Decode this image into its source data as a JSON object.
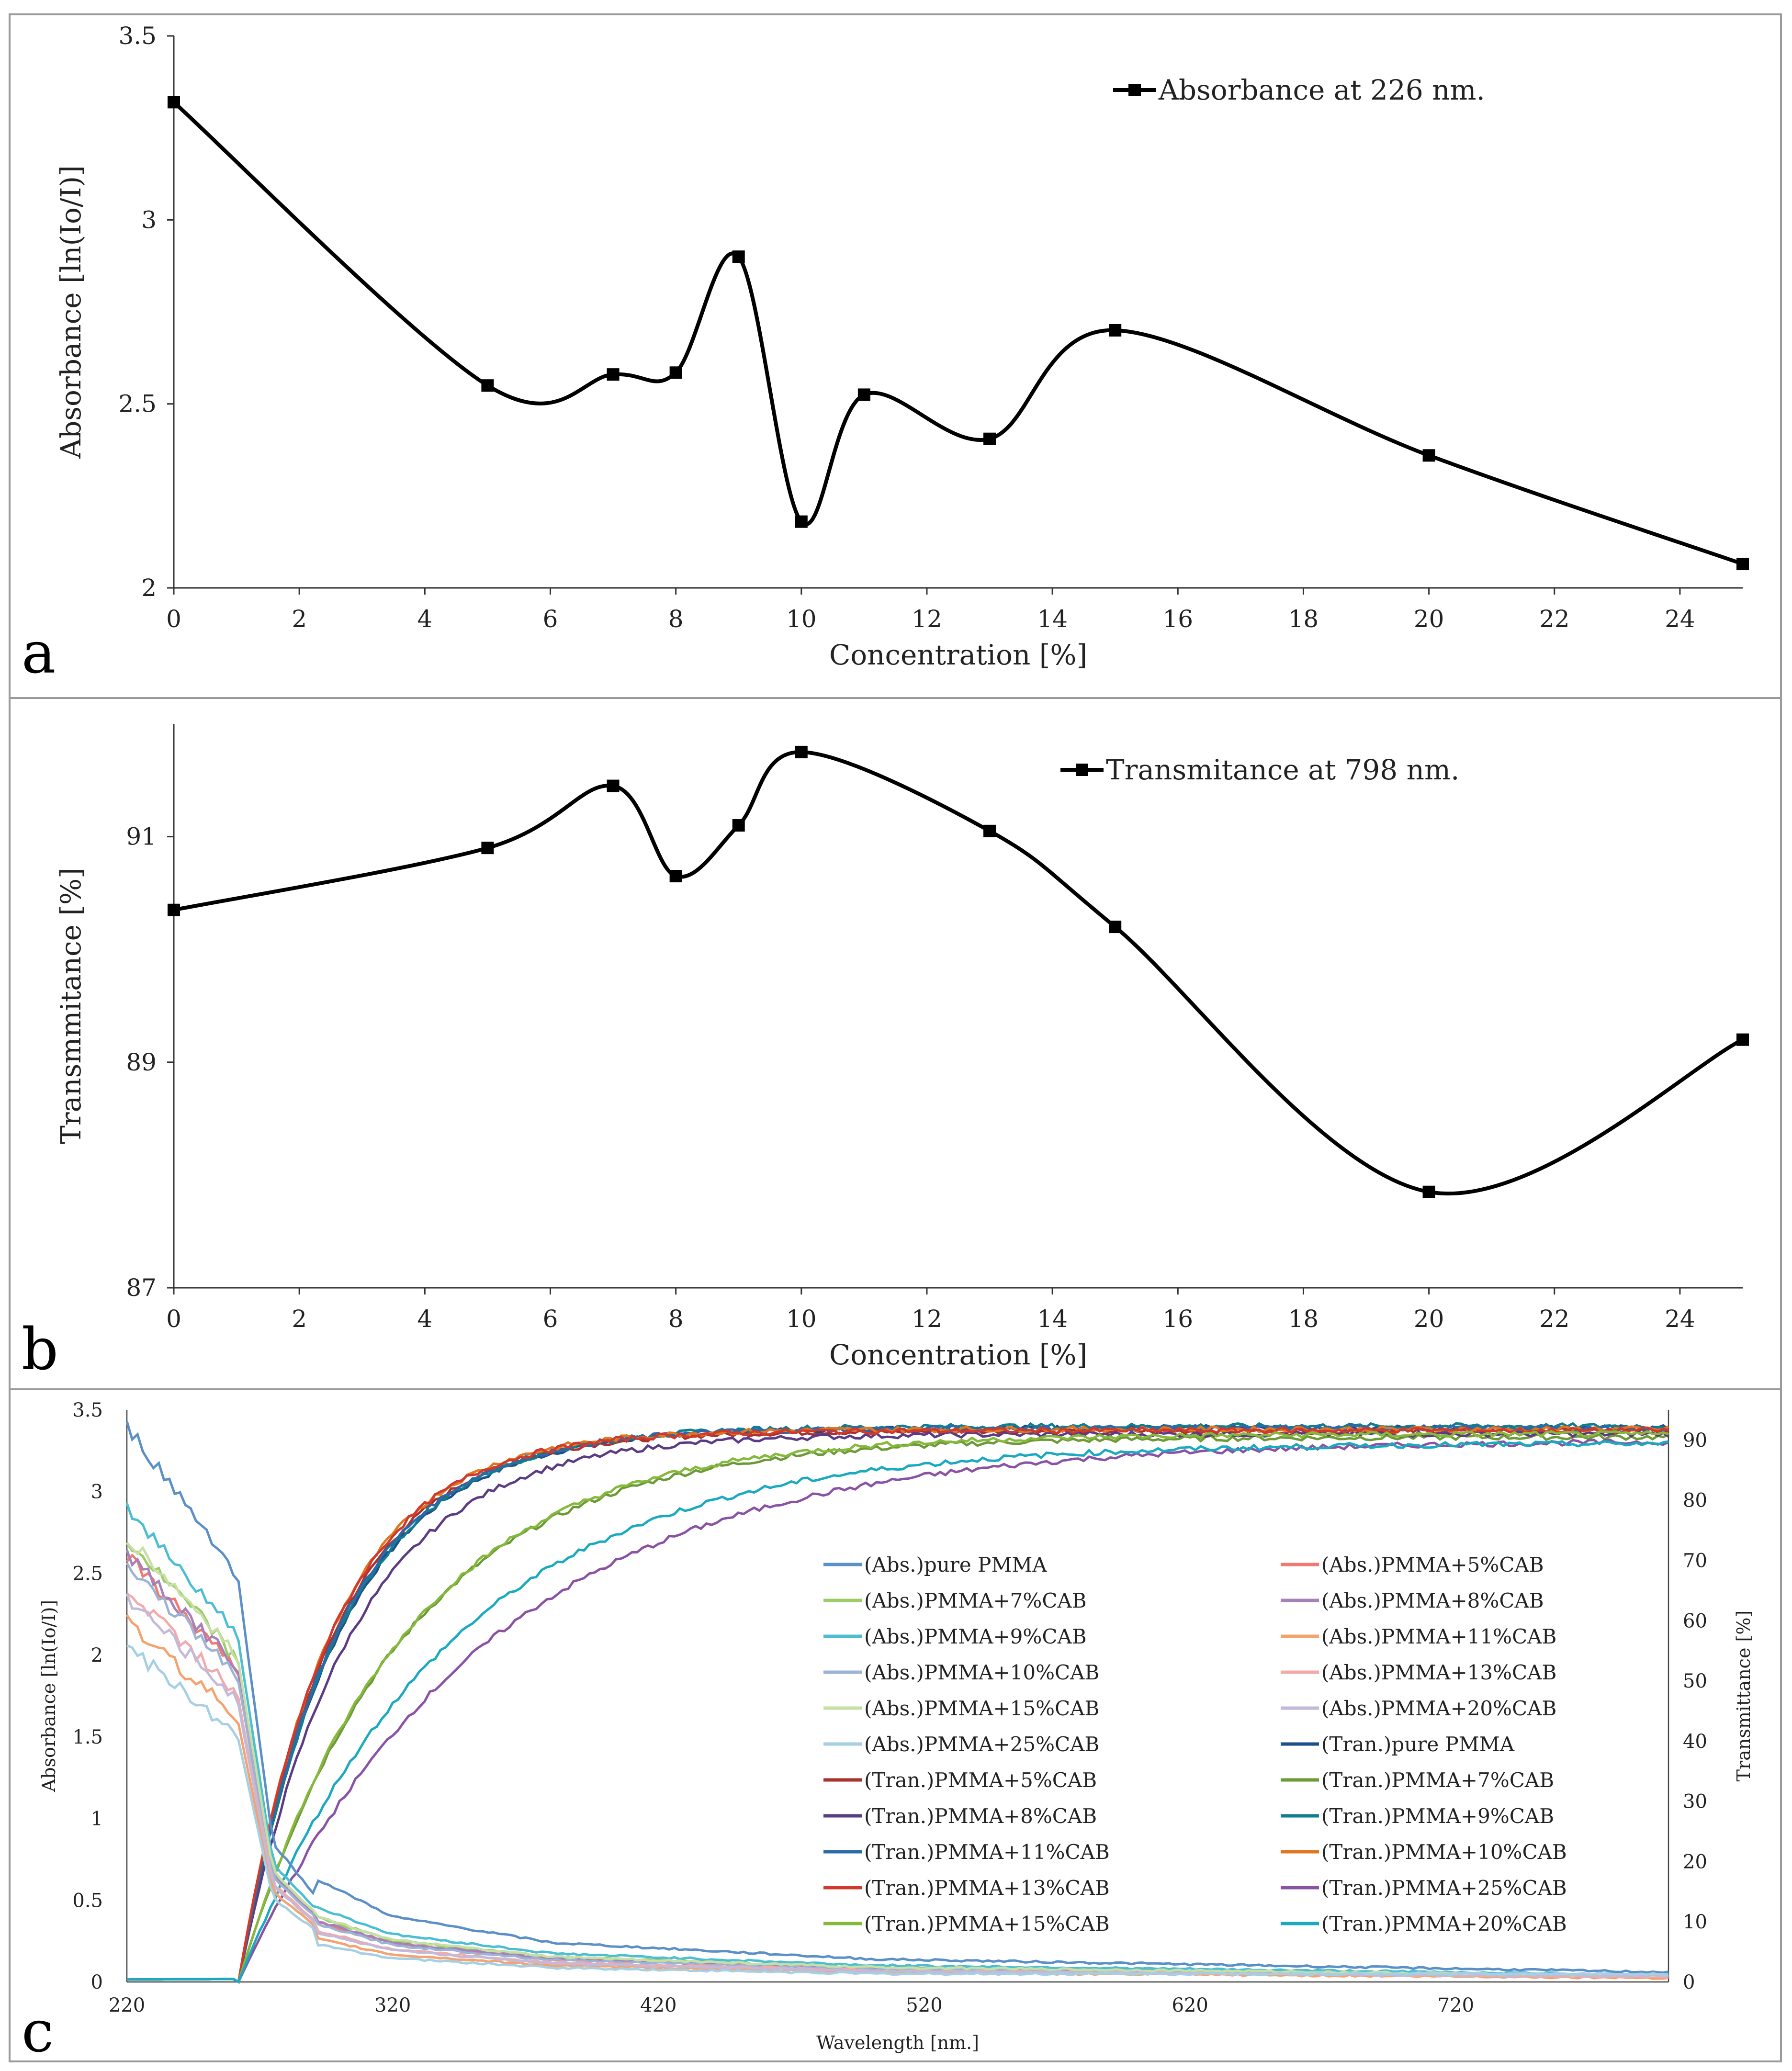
{
  "panels": {
    "a": {
      "letter": "a"
    },
    "b": {
      "letter": "b"
    },
    "c": {
      "letter": "c"
    }
  },
  "chart_data": [
    {
      "id": "a",
      "type": "line",
      "title": "",
      "xlabel": "Concentration  [%]",
      "ylabel": "Absorbance  [ln(Io/I)]",
      "xlim": [
        0,
        25
      ],
      "ylim": [
        2,
        3.5
      ],
      "xticks": [
        0,
        2,
        4,
        6,
        8,
        10,
        12,
        14,
        16,
        18,
        20,
        22,
        24
      ],
      "yticks": [
        2,
        2.5,
        3,
        3.5
      ],
      "legend_position": "top-right",
      "series": [
        {
          "name": "Absorbance at 226 nm.",
          "color": "#000000",
          "x": [
            0,
            5,
            7,
            8,
            9,
            10,
            11,
            13,
            15,
            20,
            25
          ],
          "y": [
            3.32,
            2.55,
            2.58,
            2.585,
            2.9,
            2.18,
            2.525,
            2.405,
            2.7,
            2.36,
            2.065
          ]
        }
      ]
    },
    {
      "id": "b",
      "type": "line",
      "title": "",
      "xlabel": "Concentration  [%]",
      "ylabel": "Transmmitance  [%]",
      "xlim": [
        0,
        25
      ],
      "ylim": [
        87,
        92
      ],
      "xticks": [
        0,
        2,
        4,
        6,
        8,
        10,
        12,
        14,
        16,
        18,
        20,
        22,
        24
      ],
      "yticks": [
        87,
        89,
        91
      ],
      "legend_position": "top-right",
      "series": [
        {
          "name": "Transmitance at 798 nm.",
          "color": "#000000",
          "x": [
            0,
            5,
            7,
            8,
            9,
            10,
            13,
            15,
            20,
            25
          ],
          "y": [
            90.35,
            90.9,
            91.45,
            90.65,
            91.1,
            91.75,
            91.05,
            90.2,
            87.85,
            89.2
          ]
        }
      ]
    },
    {
      "id": "c",
      "type": "line",
      "title": "",
      "xlabel": "Wavelength  [nm.]",
      "ylabel": "Absorbance  [ln(Io/I)]",
      "y2label": "Transmittance  [%]",
      "xlim": [
        220,
        800
      ],
      "ylim": [
        0,
        3.5
      ],
      "y2lim": [
        0,
        95
      ],
      "xticks": [
        220,
        320,
        420,
        520,
        620,
        720
      ],
      "yticks": [
        0,
        0.5,
        1,
        1.5,
        2,
        2.5,
        3,
        3.5
      ],
      "y2ticks": [
        0,
        10,
        20,
        30,
        40,
        50,
        60,
        70,
        80,
        90
      ],
      "legend_position": "center-right",
      "abs_model": {
        "x": [
          220,
          255,
          262,
          268,
          275,
          290,
          320,
          380,
          500,
          800
        ],
        "shape": [
          1.0,
          0.78,
          0.72,
          0.5,
          0.25,
          0.16,
          0.1,
          0.06,
          0.035,
          0.015
        ]
      },
      "series": [
        {
          "name": "(Abs.)pure PMMA",
          "color": "#5b8fc7",
          "kind": "abs",
          "peak": 3.4,
          "tail": 0.03
        },
        {
          "name": "(Abs.)PMMA+5%CAB",
          "color": "#f07a70",
          "kind": "abs",
          "peak": 2.6,
          "tail": 0.02
        },
        {
          "name": "(Abs.)PMMA+7%CAB",
          "color": "#9ccc65",
          "kind": "abs",
          "peak": 2.7,
          "tail": 0.03
        },
        {
          "name": "(Abs.)PMMA+8%CAB",
          "color": "#a680b8",
          "kind": "abs",
          "peak": 2.62,
          "tail": 0.03
        },
        {
          "name": "(Abs.)PMMA+9%CAB",
          "color": "#4bbed3",
          "kind": "abs",
          "peak": 2.9,
          "tail": 0.04
        },
        {
          "name": "(Abs.)PMMA+11%CAB",
          "color": "#f6a26e",
          "kind": "abs",
          "peak": 2.2,
          "tail": 0.02
        },
        {
          "name": "(Abs.)PMMA+10%CAB",
          "color": "#9db3d6",
          "kind": "abs",
          "peak": 2.55,
          "tail": 0.03
        },
        {
          "name": "(Abs.)PMMA+13%CAB",
          "color": "#f2aaaa",
          "kind": "abs",
          "peak": 2.4,
          "tail": 0.02
        },
        {
          "name": "(Abs.)PMMA+15%CAB",
          "color": "#c6dfa4",
          "kind": "abs",
          "peak": 2.72,
          "tail": 0.04
        },
        {
          "name": "(Abs.)PMMA+20%CAB",
          "color": "#c3b9d9",
          "kind": "abs",
          "peak": 2.35,
          "tail": 0.04
        },
        {
          "name": "(Abs.)PMMA+25%CAB",
          "color": "#a5cfe3",
          "kind": "abs",
          "peak": 2.05,
          "tail": 0.05
        },
        {
          "name": "(Tran.)pure PMMA",
          "color": "#1f4e8c",
          "kind": "tran",
          "plateau": 92,
          "k": 38
        },
        {
          "name": "(Tran.)PMMA+5%CAB",
          "color": "#a8322d",
          "kind": "tran",
          "plateau": 91.5,
          "k": 36
        },
        {
          "name": "(Tran.)PMMA+7%CAB",
          "color": "#6d9a37",
          "kind": "tran",
          "plateau": 90.5,
          "k": 62
        },
        {
          "name": "(Tran.)PMMA+8%CAB",
          "color": "#5a3b84",
          "kind": "tran",
          "plateau": 91,
          "k": 42
        },
        {
          "name": "(Tran.)PMMA+9%CAB",
          "color": "#0f7e8f",
          "kind": "tran",
          "plateau": 92.3,
          "k": 38
        },
        {
          "name": "(Tran.)PMMA+11%CAB",
          "color": "#2a6aa8",
          "kind": "tran",
          "plateau": 92,
          "k": 37
        },
        {
          "name": "(Tran.)PMMA+10%CAB",
          "color": "#e2761f",
          "kind": "tran",
          "plateau": 91.8,
          "k": 35
        },
        {
          "name": "(Tran.)PMMA+13%CAB",
          "color": "#d0392c",
          "kind": "tran",
          "plateau": 91.6,
          "k": 35
        },
        {
          "name": "(Tran.)PMMA+25%CAB",
          "color": "#8a52a5",
          "kind": "tran",
          "plateau": 90,
          "k": 95
        },
        {
          "name": "(Tran.)PMMA+15%CAB",
          "color": "#86b83c",
          "kind": "tran",
          "plateau": 91,
          "k": 62
        },
        {
          "name": "(Tran.)PMMA+20%CAB",
          "color": "#19aac0",
          "kind": "tran",
          "plateau": 89.5,
          "k": 80
        }
      ]
    }
  ]
}
